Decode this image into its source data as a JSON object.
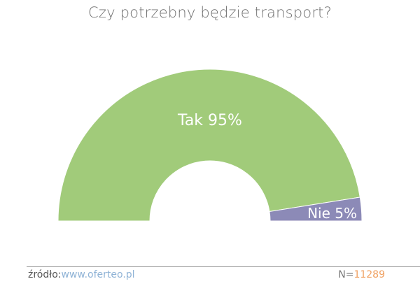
{
  "title": "Czy potrzebny będzie transport?",
  "chart_data": {
    "type": "pie",
    "variant": "half-donut",
    "title": "Czy potrzebny będzie transport?",
    "slices": [
      {
        "label": "Tak",
        "value": 95,
        "display": "Tak 95%",
        "color": "#a1cb7a"
      },
      {
        "label": "Nie",
        "value": 5,
        "display": "Nie 5%",
        "color": "#8c8ab7"
      }
    ]
  },
  "footer": {
    "source_label": "źródło:",
    "source_link": "www.oferteo.pl",
    "n_label": "N=",
    "n_value": "11289"
  }
}
